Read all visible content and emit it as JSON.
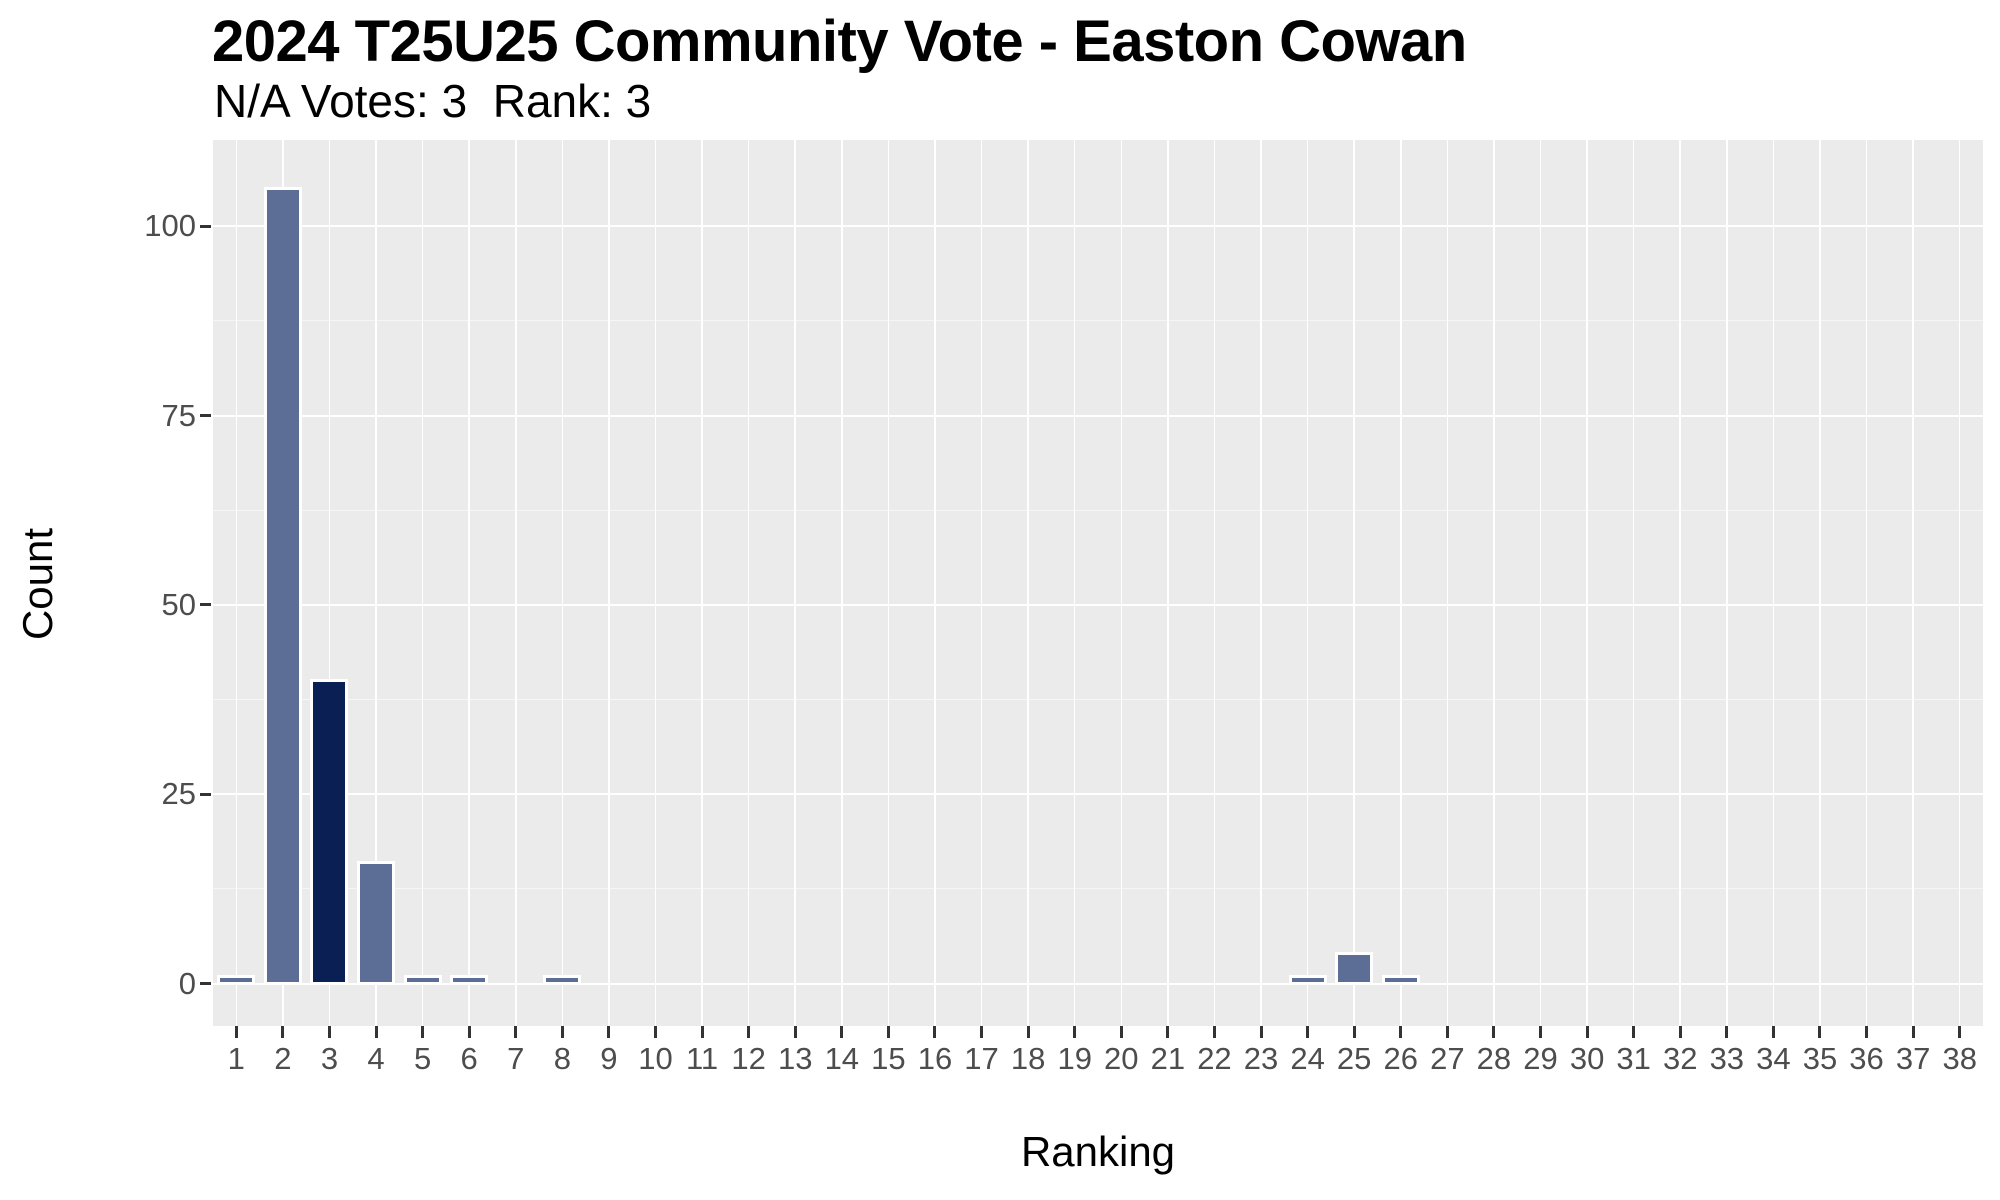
{
  "chart": {
    "title": "2024 T25U25 Community Vote - Easton Cowan",
    "subtitle": "N/A Votes: 3  Rank: 3"
  },
  "chart_data": {
    "type": "bar",
    "title": "2024 T25U25 Community Vote - Easton Cowan",
    "subtitle": "N/A Votes: 3  Rank: 3",
    "na_votes": 3,
    "rank": 3,
    "xlabel": "Ranking",
    "ylabel": "Count",
    "categories": [
      "1",
      "2",
      "3",
      "4",
      "5",
      "6",
      "7",
      "8",
      "9",
      "10",
      "11",
      "12",
      "13",
      "14",
      "15",
      "16",
      "17",
      "18",
      "19",
      "20",
      "21",
      "22",
      "23",
      "24",
      "25",
      "26",
      "27",
      "28",
      "29",
      "30",
      "31",
      "32",
      "33",
      "34",
      "35",
      "36",
      "37",
      "38"
    ],
    "values": [
      1,
      105,
      40,
      16,
      1,
      1,
      0,
      1,
      0,
      0,
      0,
      0,
      0,
      0,
      0,
      0,
      0,
      0,
      0,
      0,
      0,
      0,
      0,
      1,
      4,
      1,
      0,
      0,
      0,
      0,
      0,
      0,
      0,
      0,
      0,
      0,
      0,
      0
    ],
    "highlighted_category": "3",
    "yticks": [
      0,
      25,
      50,
      75,
      100
    ],
    "yticks_minor": [
      12.5,
      37.5,
      62.5,
      87.5
    ],
    "ylim": [
      -5.6,
      111.4
    ],
    "grid": true,
    "legend": false,
    "colors": {
      "bar": "#5C6E96",
      "highlight": "#0A1F54",
      "bar_stroke": "#FFFFFF",
      "panel_bg": "#EBEBEB",
      "grid_major": "#FFFFFF",
      "grid_minor": "#F6F6F6",
      "tick_text": "#4D4D4D",
      "axis_title": "#000000"
    }
  }
}
